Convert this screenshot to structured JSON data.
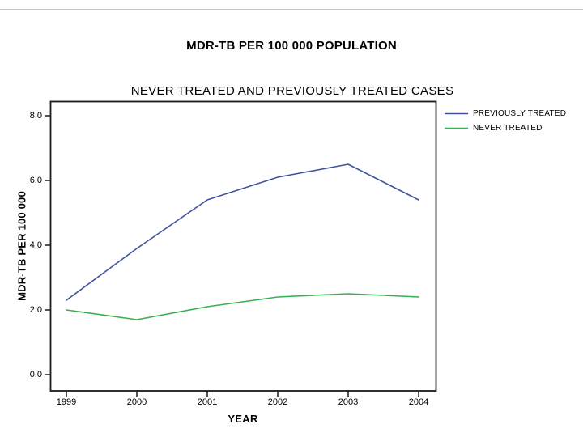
{
  "chart_data": {
    "type": "line",
    "title": "MDR-TB PER 100 000 POPULATION",
    "subtitle": "NEVER TREATED AND PREVIOUSLY TREATED CASES",
    "xlabel": "YEAR",
    "ylabel": "MDR-TB PER 100 000",
    "x": [
      1999,
      2000,
      2001,
      2002,
      2003,
      2004
    ],
    "x_tick_labels": [
      "1999",
      "2000",
      "2001",
      "2002",
      "2003",
      "2004"
    ],
    "y_ticks": [
      0,
      2,
      4,
      6,
      8
    ],
    "y_tick_labels": [
      "0,0",
      "2,0",
      "4,0",
      "6,0",
      "8,0"
    ],
    "ylim": [
      0,
      8.45
    ],
    "grid": false,
    "legend_position": "top-right-outside",
    "axis_color": "#1a1a1a",
    "series": [
      {
        "name": "PREVIOUSLY TREATED",
        "color": "#42539f",
        "values": [
          2.3,
          3.9,
          5.4,
          6.1,
          6.5,
          5.4
        ]
      },
      {
        "name": "NEVER TREATED",
        "color": "#39b04f",
        "values": [
          2.0,
          1.7,
          2.1,
          2.4,
          2.5,
          2.4
        ]
      }
    ]
  }
}
